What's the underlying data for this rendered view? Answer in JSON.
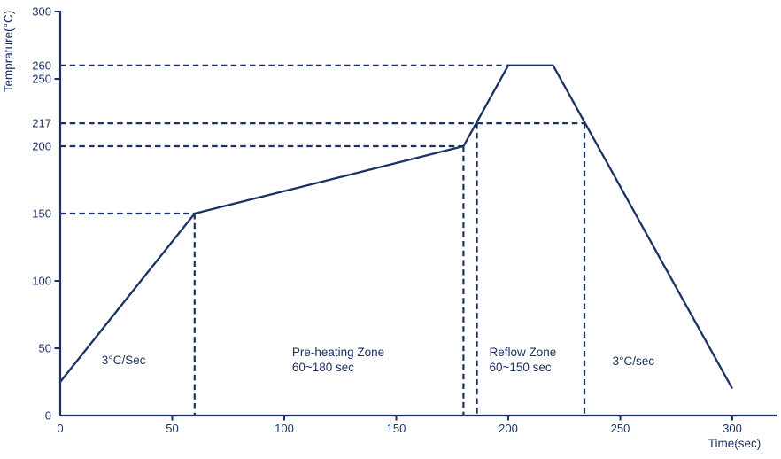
{
  "colors": {
    "primary": "#1b3264",
    "background": "#ffffff"
  },
  "chart_data": {
    "type": "line",
    "title": "",
    "xlabel": "Time(sec)",
    "ylabel": "Temprature(°C)",
    "xlim": [
      0,
      320
    ],
    "ylim": [
      0,
      300
    ],
    "grid": false,
    "legend": "none",
    "x_tick_labels": [
      0,
      50,
      100,
      150,
      200,
      250,
      300
    ],
    "x_ticks_with_marks": [
      50,
      100,
      150,
      200,
      250,
      300
    ],
    "y_tick_labels": [
      300,
      260,
      250,
      217,
      200,
      150,
      100,
      50,
      0
    ],
    "y_ticks_with_marks": [
      300,
      250,
      100,
      50
    ],
    "series": [
      {
        "name": "reflow-temperature-profile",
        "points": [
          [
            0,
            25
          ],
          [
            60,
            150
          ],
          [
            180,
            200
          ],
          [
            200,
            260
          ],
          [
            220,
            260
          ],
          [
            300,
            20
          ]
        ]
      }
    ],
    "dashed_guides": {
      "horizontal": [
        {
          "temp": 150,
          "from_time": 0,
          "to_time": 60
        },
        {
          "temp": 200,
          "from_time": 0,
          "to_time": 180
        },
        {
          "temp": 217,
          "from_time": 0,
          "to_time": 234
        },
        {
          "temp": 260,
          "from_time": 0,
          "to_time": 200
        }
      ],
      "vertical": [
        {
          "time": 60,
          "to_temp": 150
        },
        {
          "time": 180,
          "to_temp": 200
        },
        {
          "time": 186,
          "to_temp": 217
        },
        {
          "time": 234,
          "to_temp": 217
        }
      ]
    },
    "annotations": [
      {
        "name": "ramp-up-rate-label",
        "lines": [
          "3°C/Sec"
        ],
        "time": 18.5,
        "temp": 38
      },
      {
        "name": "preheating-zone-label",
        "lines": [
          "Pre-heating Zone",
          "60~180 sec"
        ],
        "time": 103.5,
        "temp": 44
      },
      {
        "name": "reflow-zone-label",
        "lines": [
          "Reflow Zone",
          "60~150 sec"
        ],
        "time": 191.5,
        "temp": 44
      },
      {
        "name": "cooling-rate-label",
        "lines": [
          "3°C/sec"
        ],
        "time": 246.5,
        "temp": 37.5
      }
    ]
  }
}
